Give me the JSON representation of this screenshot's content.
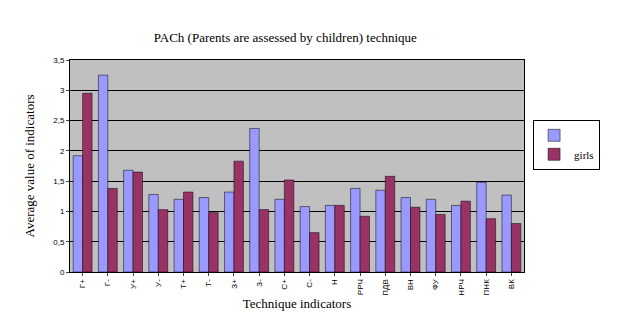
{
  "chart_data": {
    "type": "bar",
    "title": "PACh (Parents are assessed by children) technique",
    "x_label": "Technique indicators",
    "y_label": "Average value of indicators",
    "categories": [
      "Г+",
      "Г-",
      "У+",
      "У-",
      "Т+",
      "Т-",
      "З+",
      "З-",
      "С+",
      "С-",
      "Н",
      "РРЧ",
      "ПДВ",
      "ВН",
      "ФУ",
      "НРЧ",
      "ПНК",
      "ВК"
    ],
    "series": [
      {
        "name": null,
        "color": "#9999ff",
        "values": [
          1.92,
          3.25,
          1.68,
          1.28,
          1.2,
          1.23,
          1.32,
          2.37,
          1.2,
          1.08,
          1.1,
          1.38,
          1.35,
          1.23,
          1.2,
          1.1,
          1.48,
          1.27
        ]
      },
      {
        "name": "girls",
        "color": "#993366",
        "values": [
          2.95,
          1.38,
          1.65,
          1.03,
          1.32,
          0.98,
          1.83,
          1.03,
          1.52,
          0.65,
          1.1,
          0.92,
          1.58,
          1.07,
          0.95,
          1.17,
          0.88,
          0.8
        ]
      }
    ],
    "ylim": [
      0,
      3.5
    ],
    "yticks": [
      0,
      {
        "value": 0.5,
        "label": "0,5"
      },
      1,
      {
        "value": 1.5,
        "label": "1,5"
      },
      2,
      {
        "value": 2.5,
        "label": "2,5"
      },
      3,
      {
        "value": 3.5,
        "label": "3,5"
      }
    ],
    "grid": true,
    "legend": "right"
  }
}
